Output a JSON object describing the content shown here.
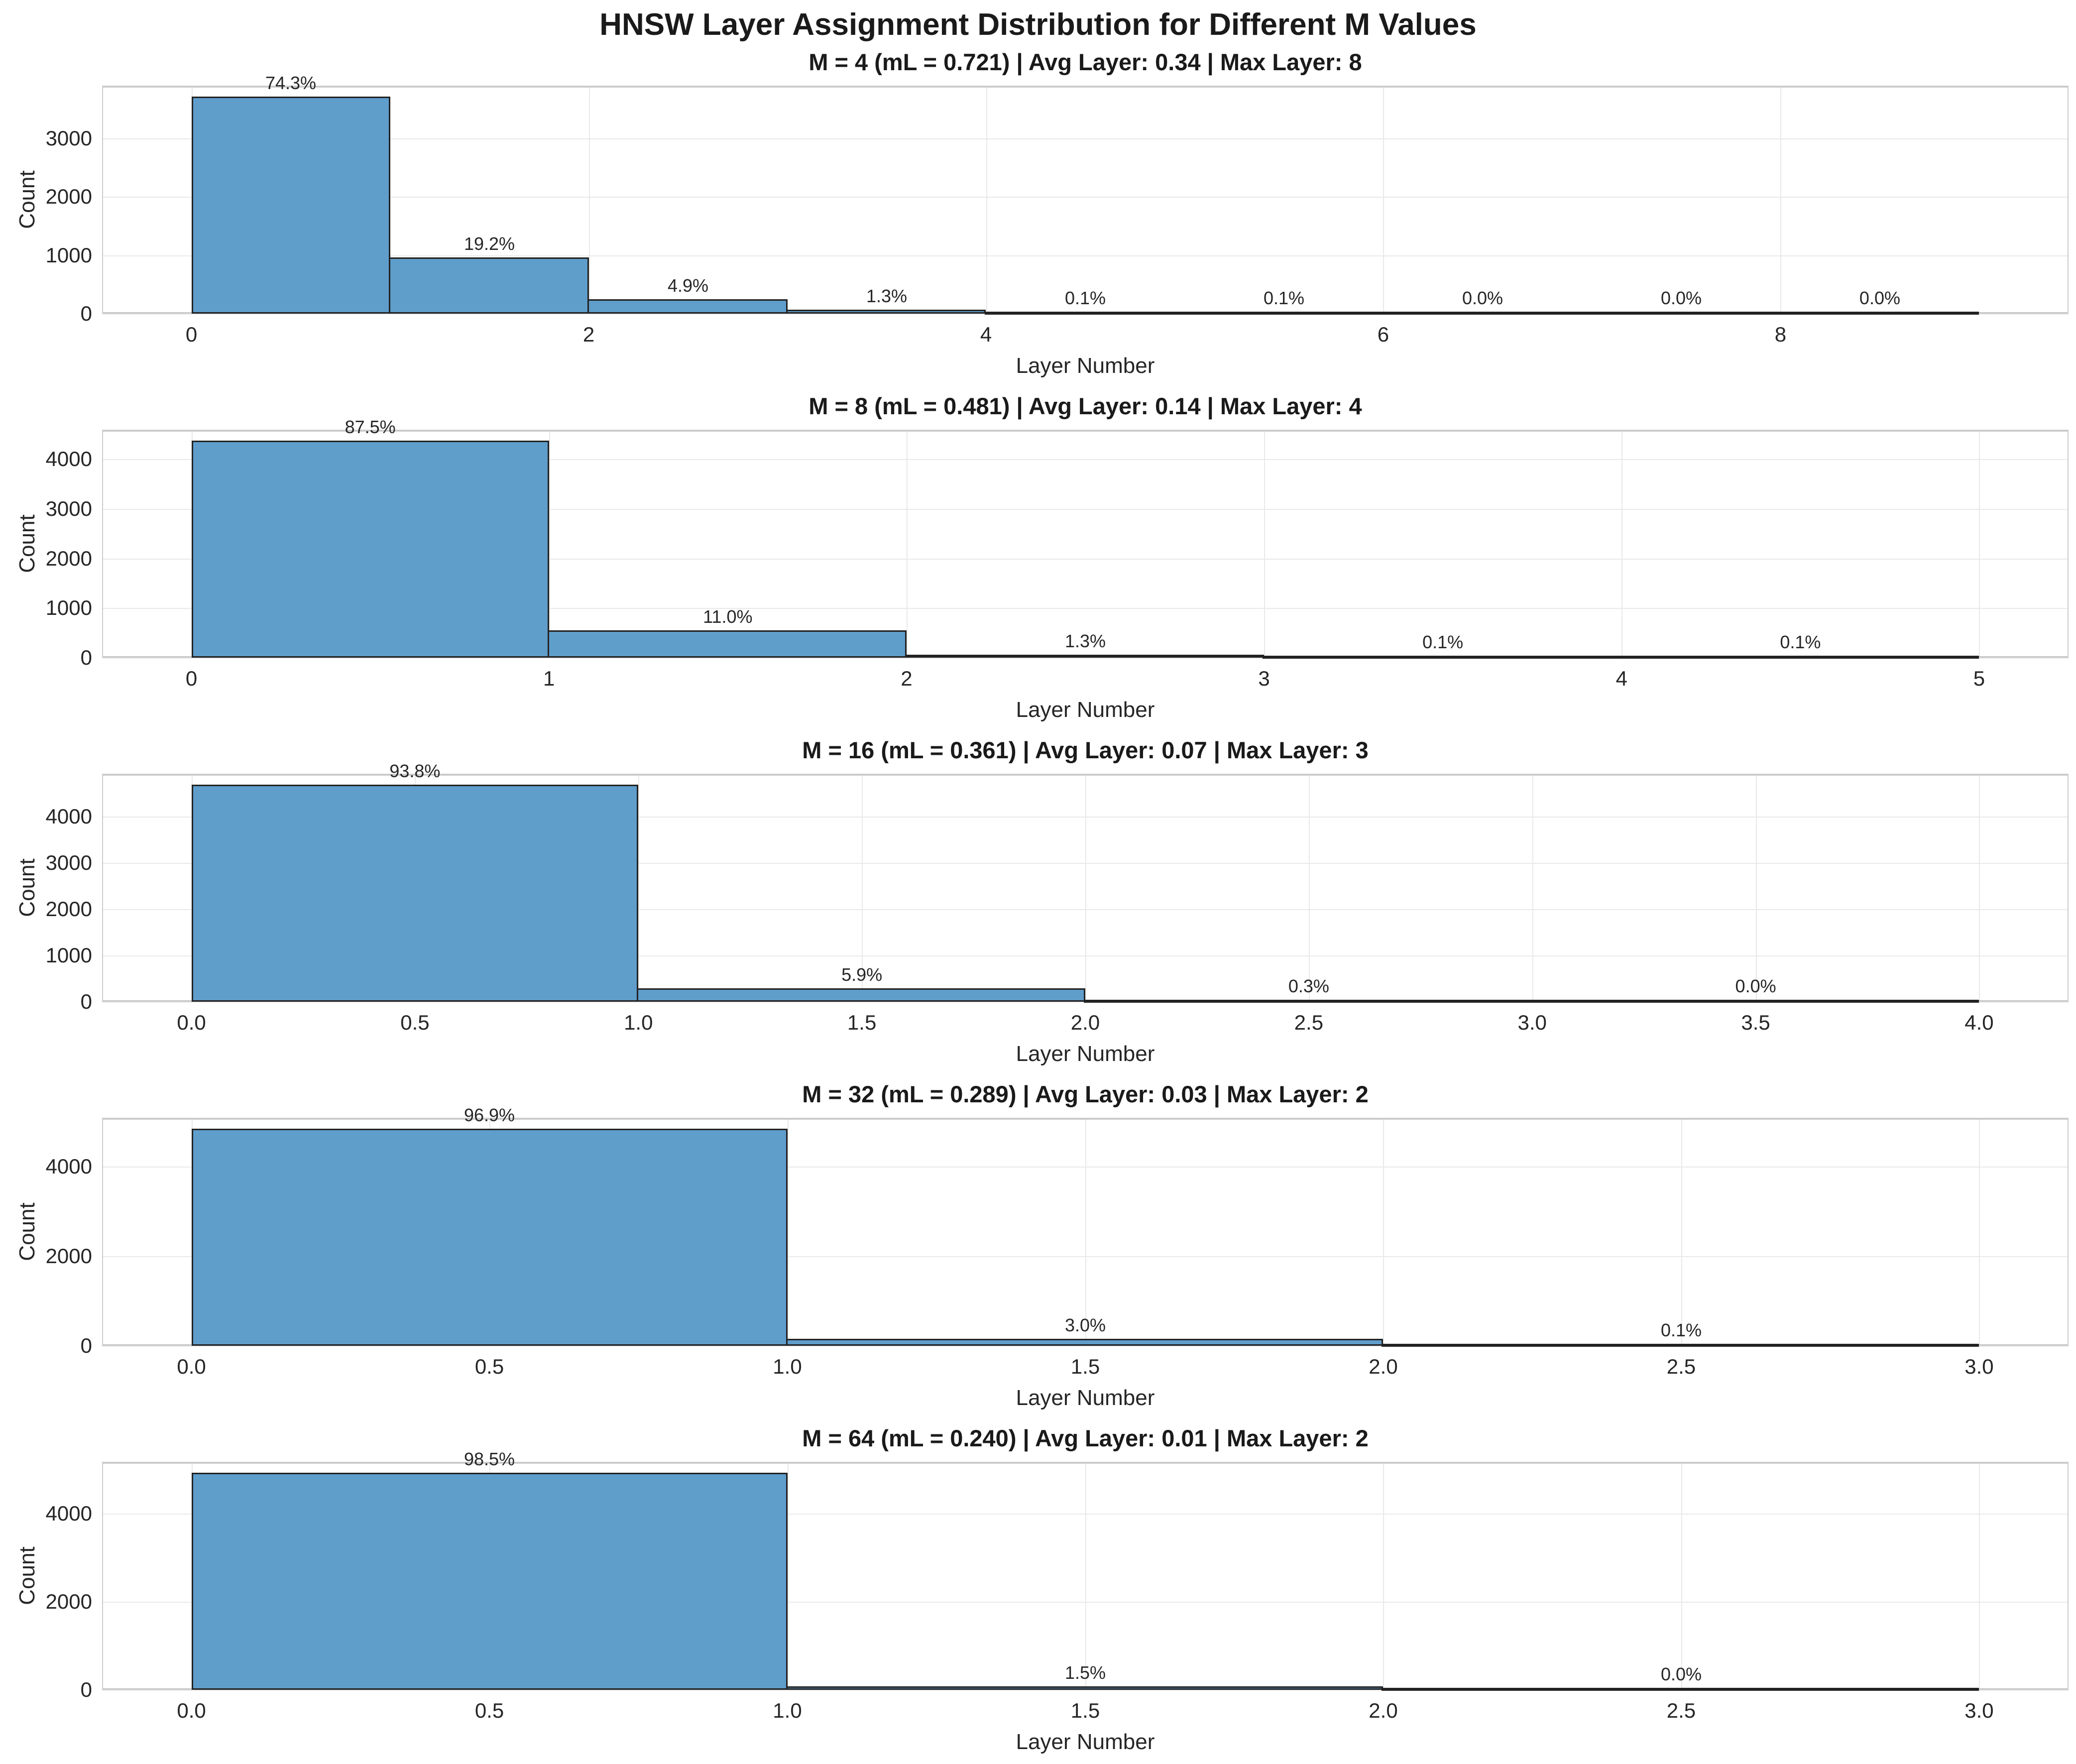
{
  "figure": {
    "title": "HNSW Layer Assignment Distribution for Different M Values",
    "xlabel": "Layer Number",
    "ylabel": "Count"
  },
  "colors": {
    "bar_fill": "#5F9DCB",
    "bar_edge": "#222222",
    "grid": "#e9e9e9",
    "spine": "#cccccc",
    "text": "#262626",
    "title_text": "#1a1a1a"
  },
  "chart_data": [
    {
      "type": "bar",
      "title": "M = 4 (mL = 0.721) | Avg Layer: 0.34 | Max Layer: 8",
      "m": 4,
      "mL": 0.721,
      "avg_layer": 0.34,
      "max_layer": 8,
      "xlabel": "Layer Number",
      "ylabel": "Count",
      "bin_start": 0,
      "bin_width": 1,
      "categories": [
        0,
        1,
        2,
        3,
        4,
        5,
        6,
        7,
        8
      ],
      "counts": [
        3715,
        960,
        245,
        65,
        5,
        5,
        2,
        1,
        1
      ],
      "percent_labels": [
        "74.3%",
        "19.2%",
        "4.9%",
        "1.3%",
        "0.1%",
        "0.1%",
        "0.0%",
        "0.0%",
        "0.0%"
      ],
      "xticks": [
        0,
        2,
        4,
        6,
        8
      ],
      "xtick_labels": [
        "0",
        "2",
        "4",
        "6",
        "8"
      ],
      "yticks": [
        0,
        1000,
        2000,
        3000
      ],
      "ytick_labels": [
        "0",
        "1000",
        "2000",
        "3000"
      ],
      "xlim": [
        -0.45,
        9.45
      ],
      "ylim": [
        0,
        3901
      ],
      "grid": true
    },
    {
      "type": "bar",
      "title": "M = 8 (mL = 0.481) | Avg Layer: 0.14 | Max Layer: 4",
      "m": 8,
      "mL": 0.481,
      "avg_layer": 0.14,
      "max_layer": 4,
      "xlabel": "Layer Number",
      "ylabel": "Count",
      "bin_start": 0,
      "bin_width": 1,
      "categories": [
        0,
        1,
        2,
        3,
        4
      ],
      "counts": [
        4375,
        550,
        65,
        5,
        5
      ],
      "percent_labels": [
        "87.5%",
        "11.0%",
        "1.3%",
        "0.1%",
        "0.1%"
      ],
      "xticks": [
        0,
        1,
        2,
        3,
        4,
        5
      ],
      "xtick_labels": [
        "0",
        "1",
        "2",
        "3",
        "4",
        "5"
      ],
      "yticks": [
        0,
        1000,
        2000,
        3000,
        4000
      ],
      "ytick_labels": [
        "0",
        "1000",
        "2000",
        "3000",
        "4000"
      ],
      "xlim": [
        -0.25,
        5.25
      ],
      "ylim": [
        0,
        4594
      ],
      "grid": true
    },
    {
      "type": "bar",
      "title": "M = 16 (mL = 0.361) | Avg Layer: 0.07 | Max Layer: 3",
      "m": 16,
      "mL": 0.361,
      "avg_layer": 0.07,
      "max_layer": 3,
      "xlabel": "Layer Number",
      "ylabel": "Count",
      "bin_start": 0,
      "bin_width": 1,
      "categories": [
        0,
        1,
        2,
        3
      ],
      "counts": [
        4690,
        295,
        15,
        2
      ],
      "percent_labels": [
        "93.8%",
        "5.9%",
        "0.3%",
        "0.0%"
      ],
      "xticks": [
        0,
        0.5,
        1,
        1.5,
        2,
        2.5,
        3,
        3.5,
        4
      ],
      "xtick_labels": [
        "0.0",
        "0.5",
        "1.0",
        "1.5",
        "2.0",
        "2.5",
        "3.0",
        "3.5",
        "4.0"
      ],
      "yticks": [
        0,
        1000,
        2000,
        3000,
        4000
      ],
      "ytick_labels": [
        "0",
        "1000",
        "2000",
        "3000",
        "4000"
      ],
      "xlim": [
        -0.2,
        4.2
      ],
      "ylim": [
        0,
        4925
      ],
      "grid": true
    },
    {
      "type": "bar",
      "title": "M = 32 (mL = 0.289) | Avg Layer: 0.03 | Max Layer: 2",
      "m": 32,
      "mL": 0.289,
      "avg_layer": 0.03,
      "max_layer": 2,
      "xlabel": "Layer Number",
      "ylabel": "Count",
      "bin_start": 0,
      "bin_width": 1,
      "categories": [
        0,
        1,
        2
      ],
      "counts": [
        4845,
        150,
        5
      ],
      "percent_labels": [
        "96.9%",
        "3.0%",
        "0.1%"
      ],
      "xticks": [
        0,
        0.5,
        1,
        1.5,
        2,
        2.5,
        3
      ],
      "xtick_labels": [
        "0.0",
        "0.5",
        "1.0",
        "1.5",
        "2.0",
        "2.5",
        "3.0"
      ],
      "yticks": [
        0,
        2000,
        4000
      ],
      "ytick_labels": [
        "0",
        "2000",
        "4000"
      ],
      "xlim": [
        -0.15,
        3.15
      ],
      "ylim": [
        0,
        5087
      ],
      "grid": true
    },
    {
      "type": "bar",
      "title": "M = 64 (mL = 0.240) | Avg Layer: 0.01 | Max Layer: 2",
      "m": 64,
      "mL": 0.24,
      "avg_layer": 0.01,
      "max_layer": 2,
      "xlabel": "Layer Number",
      "ylabel": "Count",
      "bin_start": 0,
      "bin_width": 1,
      "categories": [
        0,
        1,
        2
      ],
      "counts": [
        4925,
        75,
        2
      ],
      "percent_labels": [
        "98.5%",
        "1.5%",
        "0.0%"
      ],
      "xticks": [
        0,
        0.5,
        1,
        1.5,
        2,
        2.5,
        3
      ],
      "xtick_labels": [
        "0.0",
        "0.5",
        "1.0",
        "1.5",
        "2.0",
        "2.5",
        "3.0"
      ],
      "yticks": [
        0,
        2000,
        4000
      ],
      "ytick_labels": [
        "0",
        "2000",
        "4000"
      ],
      "xlim": [
        -0.15,
        3.15
      ],
      "ylim": [
        0,
        5171
      ],
      "grid": true
    }
  ]
}
